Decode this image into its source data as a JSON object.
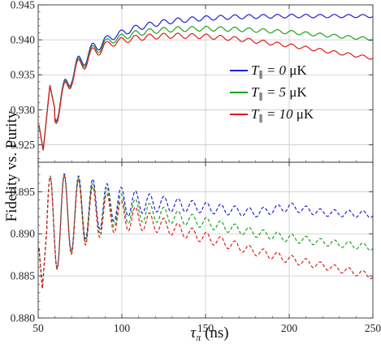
{
  "chart_data": [
    {
      "type": "line",
      "panel": "upper",
      "title": "",
      "ylabel": "Fidelity  vs. Purity",
      "xlabel": "",
      "xlim": [
        50,
        250
      ],
      "ylim": [
        0.9225,
        0.945
      ],
      "yticks": [
        0.925,
        0.93,
        0.935,
        0.94,
        0.945
      ],
      "ytick_labels": [
        "0.925",
        "0.930",
        "0.935",
        "0.940",
        "0.945"
      ],
      "xticks": [
        100,
        150,
        200
      ],
      "grid": true,
      "legend": "right",
      "series": [
        {
          "name": "T∥ = 0  μK",
          "color": "#1f1fd6",
          "style": "solid",
          "x": [
            50,
            52,
            55,
            60,
            70,
            80,
            90,
            100,
            110,
            120,
            130,
            150,
            170,
            200,
            230,
            250
          ],
          "values": [
            0.9285,
            0.9245,
            0.9262,
            0.933,
            0.932,
            0.938,
            0.94,
            0.941,
            0.9418,
            0.9423,
            0.9427,
            0.9431,
            0.9433,
            0.9434,
            0.9434,
            0.9434
          ]
        },
        {
          "name": "T∥ = 5  μK",
          "color": "#1aa31a",
          "style": "solid",
          "x": [
            50,
            52,
            55,
            60,
            70,
            80,
            90,
            100,
            110,
            120,
            130,
            150,
            170,
            200,
            230,
            250
          ],
          "values": [
            0.9285,
            0.9245,
            0.9261,
            0.9328,
            0.9318,
            0.9377,
            0.9396,
            0.9404,
            0.941,
            0.9413,
            0.9415,
            0.9416,
            0.9415,
            0.9411,
            0.9405,
            0.9401
          ]
        },
        {
          "name": "T∥ = 10  μK",
          "color": "#e01a1a",
          "style": "solid",
          "x": [
            50,
            52,
            55,
            60,
            70,
            80,
            90,
            100,
            110,
            120,
            130,
            150,
            170,
            200,
            230,
            250
          ],
          "values": [
            0.9285,
            0.9245,
            0.926,
            0.9326,
            0.9316,
            0.9374,
            0.9392,
            0.9399,
            0.9403,
            0.9405,
            0.9406,
            0.9405,
            0.9401,
            0.9392,
            0.9381,
            0.9374
          ]
        }
      ],
      "oscillation_period": 8.5
    },
    {
      "type": "line",
      "panel": "lower",
      "title": "",
      "ylabel": "Fidelity  vs. Purity",
      "xlabel": "τπ (ns)",
      "xlim": [
        50,
        250
      ],
      "ylim": [
        0.88,
        0.8985
      ],
      "yticks": [
        0.88,
        0.885,
        0.89,
        0.895
      ],
      "ytick_labels": [
        "0.880",
        "0.885",
        "0.890",
        "0.895"
      ],
      "xticks": [
        50,
        100,
        150,
        200,
        250
      ],
      "xtick_labels": [
        "50",
        "100",
        "150",
        "200",
        "250"
      ],
      "grid": true,
      "series": [
        {
          "name": "T∥ = 0  μK",
          "color": "#1f1fd6",
          "style": "dashed",
          "x": [
            55,
            60,
            70,
            80,
            90,
            100,
            110,
            120,
            140,
            160,
            180,
            200,
            220,
            250
          ],
          "center": [
            0.89,
            0.8915,
            0.8925,
            0.8932,
            0.8935,
            0.8937,
            0.8937,
            0.8936,
            0.8933,
            0.8929,
            0.8925,
            0.8932,
            0.8925,
            0.8923
          ],
          "amplitude": [
            0.0065,
            0.0058,
            0.0045,
            0.0035,
            0.0025,
            0.0018,
            0.0013,
            0.001,
            0.0007,
            0.0006,
            0.0005,
            0.0005,
            0.0004,
            0.0004
          ]
        },
        {
          "name": "T∥ = 5  μK",
          "color": "#1aa31a",
          "style": "dashed",
          "x": [
            55,
            60,
            70,
            80,
            90,
            100,
            110,
            120,
            140,
            160,
            180,
            200,
            220,
            250
          ],
          "center": [
            0.89,
            0.8914,
            0.8923,
            0.8928,
            0.893,
            0.8929,
            0.8927,
            0.8924,
            0.8917,
            0.8909,
            0.8901,
            0.8895,
            0.889,
            0.8884
          ],
          "amplitude": [
            0.0065,
            0.0058,
            0.0045,
            0.0035,
            0.0025,
            0.0018,
            0.0013,
            0.001,
            0.0007,
            0.0006,
            0.0005,
            0.0005,
            0.0004,
            0.0004
          ]
        },
        {
          "name": "T∥ = 10  μK",
          "color": "#e01a1a",
          "style": "dashed",
          "x": [
            55,
            60,
            70,
            80,
            90,
            100,
            110,
            120,
            140,
            160,
            180,
            200,
            220,
            250
          ],
          "center": [
            0.89,
            0.8913,
            0.8921,
            0.8924,
            0.8924,
            0.8921,
            0.8917,
            0.8912,
            0.8901,
            0.889,
            0.8879,
            0.887,
            0.8862,
            0.885
          ],
          "amplitude": [
            0.0065,
            0.0058,
            0.0045,
            0.0035,
            0.0025,
            0.0018,
            0.0013,
            0.001,
            0.0007,
            0.0006,
            0.0005,
            0.0005,
            0.0004,
            0.0004
          ]
        }
      ],
      "oscillation_period": 8.5
    }
  ],
  "legend": {
    "entries": [
      {
        "prefix": "T",
        "sub": "∥",
        "value": " = 0  ",
        "unit": "μK",
        "color": "#1f1fd6"
      },
      {
        "prefix": "T",
        "sub": "∥",
        "value": " = 5  ",
        "unit": "μK",
        "color": "#1aa31a"
      },
      {
        "prefix": "T",
        "sub": "∥",
        "value": " = 10 ",
        "unit": "μK",
        "color": "#e01a1a"
      }
    ]
  },
  "labels": {
    "ylabel": "Fidelity  vs. Purity",
    "xlabel_symbol": "τ",
    "xlabel_sub": "π",
    "xlabel_unit": " (ns)"
  }
}
